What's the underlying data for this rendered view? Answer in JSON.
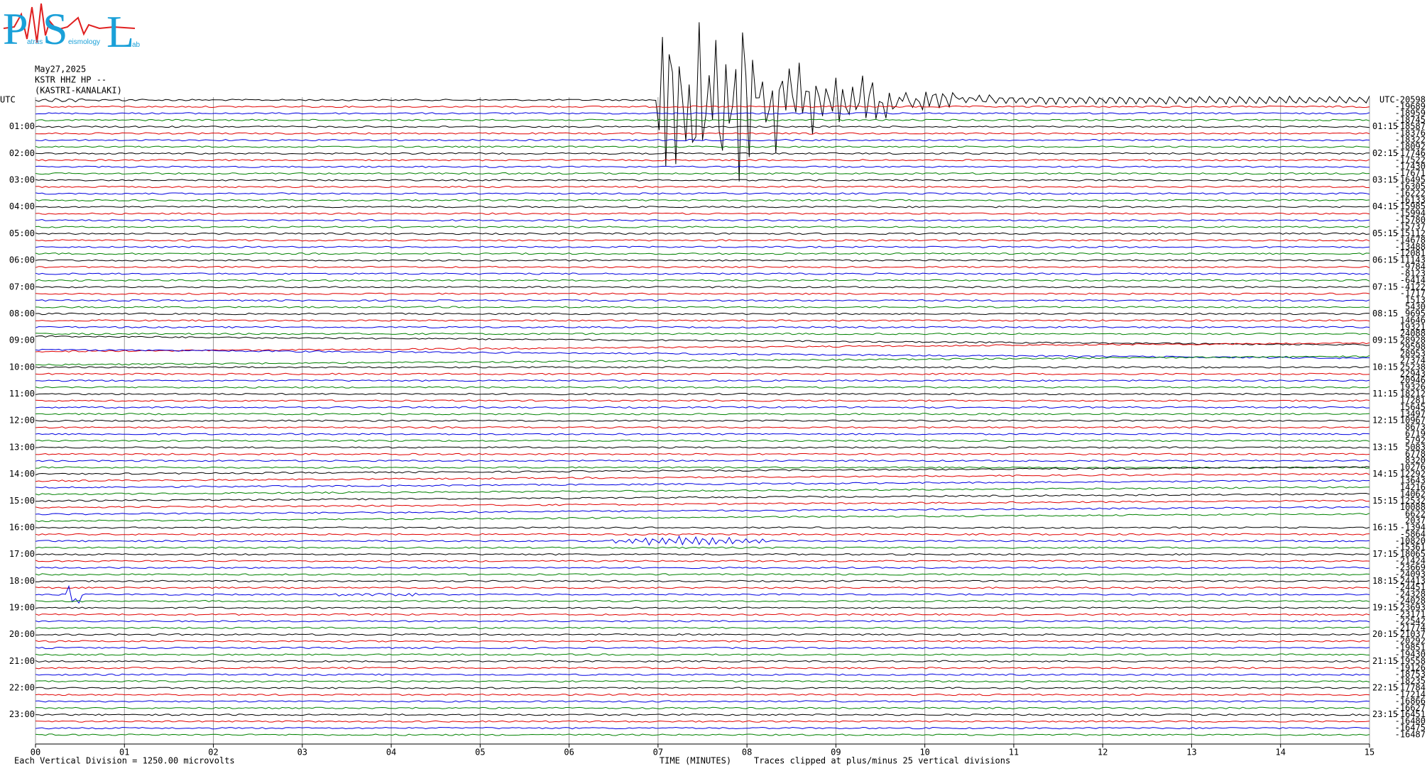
{
  "logo": {
    "p": "P",
    "s": "S",
    "l": "L",
    "p_rest": "atras",
    "s_rest": "eismology",
    "l_rest": "ab"
  },
  "chart_data": {
    "type": "helicorder",
    "title_lines": [
      "May27,2025",
      "KSTR HHZ HP --",
      "(KASTRI-KANALAKI)"
    ],
    "utc_left": "UTC",
    "utc_right": "UTC",
    "row_labels_left": [
      "01:00",
      "02:00",
      "03:00",
      "04:00",
      "05:00",
      "06:00",
      "07:00",
      "08:00",
      "09:00",
      "10:00",
      "11:00",
      "12:00",
      "13:00",
      "14:00",
      "15:00",
      "16:00",
      "17:00",
      "18:00",
      "19:00",
      "20:00",
      "21:00",
      "22:00",
      "23:00"
    ],
    "row_labels_right": [
      "01:15",
      "02:15",
      "03:15",
      "04:15",
      "05:15",
      "06:15",
      "07:15",
      "08:15",
      "09:15",
      "10:15",
      "11:15",
      "12:15",
      "13:15",
      "14:15",
      "15:15",
      "16:15",
      "17:15",
      "18:15",
      "19:15",
      "20:15",
      "21:15",
      "22:15",
      "23:15"
    ],
    "colors": [
      "#000000",
      "#e00000",
      "#0000e0",
      "#008000"
    ],
    "xlim": [
      0,
      15
    ],
    "xticks": [
      {
        "value": 0,
        "label": "00"
      },
      {
        "value": 1,
        "label": "01"
      },
      {
        "value": 2,
        "label": "02"
      },
      {
        "value": 3,
        "label": "03"
      },
      {
        "value": 4,
        "label": "04"
      },
      {
        "value": 5,
        "label": "05"
      },
      {
        "value": 6,
        "label": "06"
      },
      {
        "value": 7,
        "label": "07"
      },
      {
        "value": 8,
        "label": "08"
      },
      {
        "value": 9,
        "label": "09"
      },
      10,
      11,
      12,
      13,
      14,
      15
    ],
    "grid": true,
    "xlabel": "TIME (MINUTES)",
    "trace_offsets": [
      -20598,
      -19689,
      -18959,
      -18745,
      -18587,
      -18376,
      -18322,
      -18092,
      -17746,
      -17522,
      -17430,
      -17671,
      -16495,
      -16305,
      -16222,
      -16133,
      -15985,
      -15994,
      -15780,
      -15737,
      -15112,
      -14678,
      -13488,
      -12081,
      -11143,
      -9784,
      -8123,
      -6414,
      -4122,
      -1717,
      1513,
      5430,
      9695,
      14646,
      19321,
      24088,
      28928,
      29598,
      28953,
      27374,
      25238,
      22943,
      20946,
      19326,
      18212,
      17281,
      15645,
      13497,
      10967,
      8673,
      6719,
      5792,
      5083,
      6778,
      8320,
      10276,
      12292,
      13643,
      14216,
      14062,
      12532,
      10088,
      6622,
      2037,
      -1394,
      -5864,
      -10820,
      -15361,
      -18065,
      -21424,
      -23669,
      -24093,
      -24413,
      -24451,
      -24328,
      -24028,
      -23693,
      -23171,
      -22542,
      -21774,
      -21037,
      -20292,
      -19851,
      -19430,
      -19558,
      -19126,
      -18753,
      -18235,
      -17784,
      -17214,
      -16866,
      -16627,
      -16451,
      -16480,
      -16475,
      -16487
    ],
    "footer_left": "Each Vertical Division = 1250.00 microvolts",
    "footer_right": "Traces clipped at plus/minus 25 vertical divisions"
  }
}
